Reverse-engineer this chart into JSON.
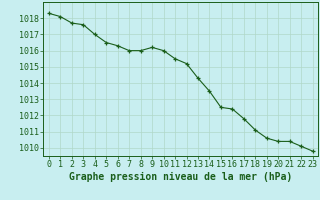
{
  "x": [
    0,
    1,
    2,
    3,
    4,
    5,
    6,
    7,
    8,
    9,
    10,
    11,
    12,
    13,
    14,
    15,
    16,
    17,
    18,
    19,
    20,
    21,
    22,
    23
  ],
  "y": [
    1018.3,
    1018.1,
    1017.7,
    1017.6,
    1017.0,
    1016.5,
    1016.3,
    1016.0,
    1016.0,
    1016.2,
    1016.0,
    1015.5,
    1015.2,
    1014.3,
    1013.5,
    1012.5,
    1012.4,
    1011.8,
    1011.1,
    1010.6,
    1010.4,
    1010.4,
    1010.1,
    1009.8
  ],
  "line_color": "#1a5e1a",
  "marker_color": "#1a5e1a",
  "bg_color": "#c8eef0",
  "grid_color": "#b0d8c8",
  "xlabel": "Graphe pression niveau de la mer (hPa)",
  "ylim_min": 1009.5,
  "ylim_max": 1019.0,
  "yticks": [
    1010,
    1011,
    1012,
    1013,
    1014,
    1015,
    1016,
    1017,
    1018
  ],
  "xticks": [
    0,
    1,
    2,
    3,
    4,
    5,
    6,
    7,
    8,
    9,
    10,
    11,
    12,
    13,
    14,
    15,
    16,
    17,
    18,
    19,
    20,
    21,
    22,
    23
  ],
  "xlabel_fontsize": 7.0,
  "tick_fontsize": 6.0,
  "title_color": "#1a5e1a",
  "tick_color": "#1a5e1a"
}
